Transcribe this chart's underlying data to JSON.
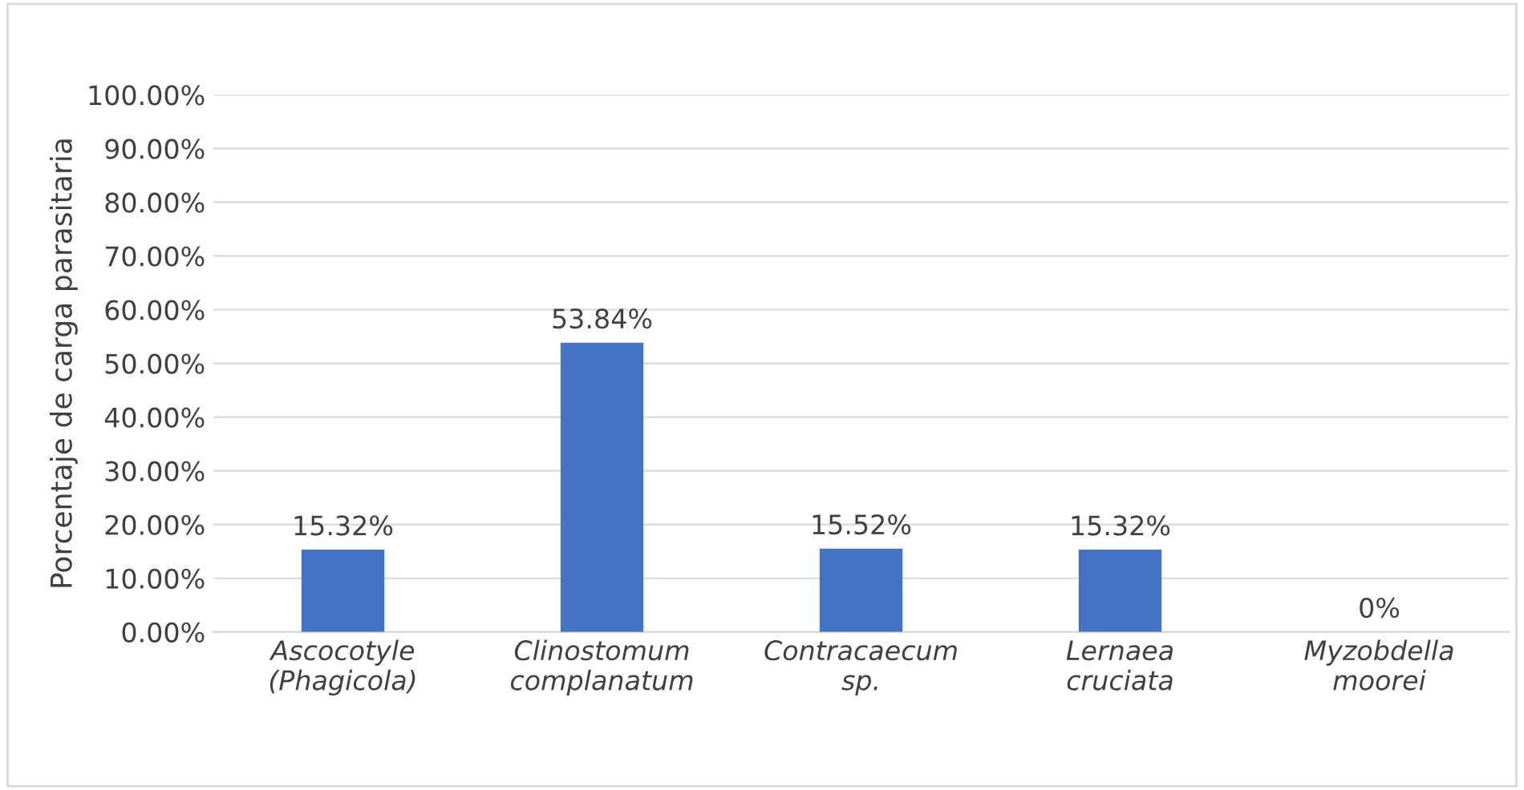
{
  "chart_data": {
    "type": "bar",
    "ylabel": "Porcentaje de carga parasitaria",
    "categories": [
      "Ascocotyle\n(Phagicola)",
      "Clinostomum\ncomplanatum",
      "Contracaecum\nsp.",
      "Lernaea\ncruciata",
      "Myzobdella\nmoorei"
    ],
    "values": [
      15.32,
      53.84,
      15.52,
      15.32,
      0
    ],
    "value_labels": [
      "15.32%",
      "53.84%",
      "15.52%",
      "15.32%",
      "0%"
    ],
    "color": "#4472c4",
    "ylim": [
      0,
      100
    ],
    "yticks": [
      {
        "value": 0,
        "label": "0.00%"
      },
      {
        "value": 10,
        "label": "10.00%"
      },
      {
        "value": 20,
        "label": "20.00%"
      },
      {
        "value": 30,
        "label": "30.00%"
      },
      {
        "value": 40,
        "label": "40.00%"
      },
      {
        "value": 50,
        "label": "50.00%"
      },
      {
        "value": 60,
        "label": "60.00%"
      },
      {
        "value": 70,
        "label": "70.00%"
      },
      {
        "value": 80,
        "label": "80.00%"
      },
      {
        "value": 90,
        "label": "90.00%"
      },
      {
        "value": 100,
        "label": "100.00%"
      }
    ],
    "grid": "y",
    "legend": false
  }
}
